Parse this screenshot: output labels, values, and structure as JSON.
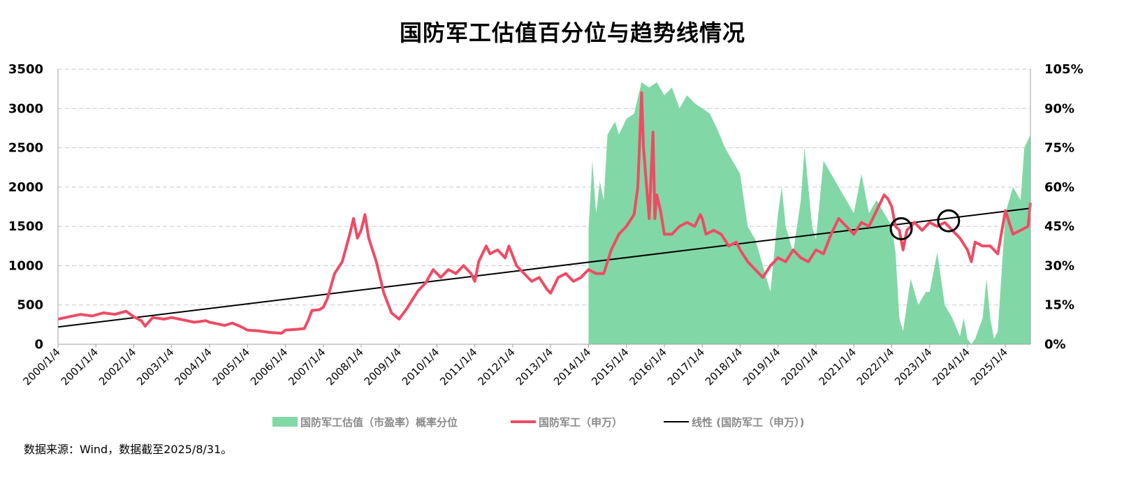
{
  "title": "国防军工估值百分位与趋势线情况",
  "source": "数据来源：Wind，数据截至2025/8/31。",
  "colors": {
    "area": "#82d7a6",
    "line": "#ee4b64",
    "trend": "#000000",
    "grid": "#c8c8c8"
  },
  "legend": [
    {
      "label": "国防军工估值（市盈率）概率分位",
      "type": "area"
    },
    {
      "label": "国防军工（申万）",
      "type": "line"
    },
    {
      "label": "线性 (国防军工（申万）)",
      "type": "trend"
    }
  ],
  "chart_data": {
    "type": "line",
    "title": "国防军工估值百分位与趋势线情况",
    "x_tick_labels": [
      "2000/1/4",
      "2001/1/4",
      "2002/1/4",
      "2003/1/4",
      "2004/1/4",
      "2005/1/4",
      "2006/1/4",
      "2007/1/4",
      "2008/1/4",
      "2009/1/4",
      "2010/1/4",
      "2011/1/4",
      "2012/1/4",
      "2013/1/4",
      "2014/1/4",
      "2015/1/4",
      "2016/1/4",
      "2017/1/4",
      "2018/1/4",
      "2019/1/4",
      "2020/1/4",
      "2021/1/4",
      "2022/1/4",
      "2023/1/4",
      "2024/1/4",
      "2025/1/4"
    ],
    "x_range": [
      "2000/1/4",
      "2025/8/31"
    ],
    "y_left": {
      "ylim": [
        0,
        3500
      ],
      "ticks": [
        "0",
        "500",
        "1000",
        "1500",
        "2000",
        "2500",
        "3000",
        "3500"
      ]
    },
    "y_right": {
      "ylim": [
        0,
        1.05
      ],
      "ticks": [
        "0%",
        "15%",
        "30%",
        "45%",
        "60%",
        "75%",
        "90%",
        "105%"
      ]
    },
    "grid": "horizontal-dashed",
    "legend_position": "bottom",
    "series": [
      {
        "name": "国防军工（申万）",
        "axis": "left",
        "type": "line",
        "points": [
          [
            2000.0,
            320
          ],
          [
            2000.3,
            350
          ],
          [
            2000.6,
            380
          ],
          [
            2000.9,
            360
          ],
          [
            2001.2,
            400
          ],
          [
            2001.5,
            380
          ],
          [
            2001.8,
            420
          ],
          [
            2002.0,
            350
          ],
          [
            2002.2,
            300
          ],
          [
            2002.3,
            230
          ],
          [
            2002.5,
            340
          ],
          [
            2002.8,
            320
          ],
          [
            2003.0,
            340
          ],
          [
            2003.3,
            310
          ],
          [
            2003.6,
            280
          ],
          [
            2003.9,
            300
          ],
          [
            2004.0,
            280
          ],
          [
            2004.2,
            260
          ],
          [
            2004.4,
            240
          ],
          [
            2004.6,
            270
          ],
          [
            2004.8,
            230
          ],
          [
            2005.0,
            180
          ],
          [
            2005.3,
            170
          ],
          [
            2005.6,
            150
          ],
          [
            2005.9,
            140
          ],
          [
            2006.0,
            180
          ],
          [
            2006.3,
            190
          ],
          [
            2006.5,
            200
          ],
          [
            2006.6,
            300
          ],
          [
            2006.7,
            430
          ],
          [
            2006.9,
            440
          ],
          [
            2007.0,
            470
          ],
          [
            2007.1,
            570
          ],
          [
            2007.3,
            900
          ],
          [
            2007.5,
            1050
          ],
          [
            2007.7,
            1400
          ],
          [
            2007.8,
            1600
          ],
          [
            2007.9,
            1350
          ],
          [
            2008.0,
            1450
          ],
          [
            2008.1,
            1650
          ],
          [
            2008.2,
            1350
          ],
          [
            2008.4,
            1050
          ],
          [
            2008.5,
            850
          ],
          [
            2008.6,
            650
          ],
          [
            2008.8,
            400
          ],
          [
            2009.0,
            320
          ],
          [
            2009.2,
            450
          ],
          [
            2009.5,
            680
          ],
          [
            2009.7,
            780
          ],
          [
            2009.9,
            950
          ],
          [
            2010.1,
            850
          ],
          [
            2010.3,
            950
          ],
          [
            2010.5,
            900
          ],
          [
            2010.7,
            1000
          ],
          [
            2010.9,
            900
          ],
          [
            2011.0,
            800
          ],
          [
            2011.1,
            1050
          ],
          [
            2011.3,
            1250
          ],
          [
            2011.4,
            1150
          ],
          [
            2011.6,
            1200
          ],
          [
            2011.8,
            1100
          ],
          [
            2011.9,
            1250
          ],
          [
            2012.1,
            1000
          ],
          [
            2012.3,
            900
          ],
          [
            2012.5,
            800
          ],
          [
            2012.7,
            850
          ],
          [
            2012.9,
            700
          ],
          [
            2013.0,
            650
          ],
          [
            2013.2,
            850
          ],
          [
            2013.4,
            900
          ],
          [
            2013.6,
            800
          ],
          [
            2013.8,
            850
          ],
          [
            2014.0,
            950
          ],
          [
            2014.2,
            900
          ],
          [
            2014.4,
            900
          ],
          [
            2014.6,
            1200
          ],
          [
            2014.8,
            1400
          ],
          [
            2015.0,
            1500
          ],
          [
            2015.2,
            1650
          ],
          [
            2015.3,
            2000
          ],
          [
            2015.4,
            3200
          ],
          [
            2015.45,
            2500
          ],
          [
            2015.5,
            2200
          ],
          [
            2015.6,
            1600
          ],
          [
            2015.7,
            2700
          ],
          [
            2015.75,
            1600
          ],
          [
            2015.8,
            1900
          ],
          [
            2015.9,
            1700
          ],
          [
            2016.0,
            1400
          ],
          [
            2016.2,
            1400
          ],
          [
            2016.4,
            1500
          ],
          [
            2016.6,
            1550
          ],
          [
            2016.8,
            1500
          ],
          [
            2016.95,
            1650
          ],
          [
            2017.0,
            1600
          ],
          [
            2017.1,
            1400
          ],
          [
            2017.3,
            1450
          ],
          [
            2017.5,
            1400
          ],
          [
            2017.7,
            1250
          ],
          [
            2017.9,
            1300
          ],
          [
            2018.0,
            1200
          ],
          [
            2018.2,
            1050
          ],
          [
            2018.4,
            950
          ],
          [
            2018.6,
            850
          ],
          [
            2018.8,
            1000
          ],
          [
            2019.0,
            1100
          ],
          [
            2019.2,
            1050
          ],
          [
            2019.4,
            1200
          ],
          [
            2019.6,
            1100
          ],
          [
            2019.8,
            1050
          ],
          [
            2020.0,
            1200
          ],
          [
            2020.2,
            1150
          ],
          [
            2020.4,
            1400
          ],
          [
            2020.6,
            1600
          ],
          [
            2020.8,
            1500
          ],
          [
            2021.0,
            1400
          ],
          [
            2021.2,
            1550
          ],
          [
            2021.4,
            1500
          ],
          [
            2021.6,
            1700
          ],
          [
            2021.8,
            1900
          ],
          [
            2021.9,
            1850
          ],
          [
            2022.0,
            1750
          ],
          [
            2022.1,
            1500
          ],
          [
            2022.2,
            1450
          ],
          [
            2022.3,
            1200
          ],
          [
            2022.4,
            1450
          ],
          [
            2022.6,
            1550
          ],
          [
            2022.8,
            1450
          ],
          [
            2023.0,
            1550
          ],
          [
            2023.2,
            1500
          ],
          [
            2023.4,
            1550
          ],
          [
            2023.6,
            1450
          ],
          [
            2023.8,
            1350
          ],
          [
            2024.0,
            1200
          ],
          [
            2024.1,
            1050
          ],
          [
            2024.2,
            1300
          ],
          [
            2024.4,
            1250
          ],
          [
            2024.6,
            1250
          ],
          [
            2024.8,
            1150
          ],
          [
            2025.0,
            1700
          ],
          [
            2025.2,
            1400
          ],
          [
            2025.4,
            1450
          ],
          [
            2025.6,
            1500
          ],
          [
            2025.66,
            1800
          ]
        ]
      },
      {
        "name": "国防军工估值（市盈率）概率分位",
        "axis": "right",
        "type": "area",
        "points": [
          [
            2014.0,
            0.44
          ],
          [
            2014.1,
            0.7
          ],
          [
            2014.2,
            0.5
          ],
          [
            2014.3,
            0.62
          ],
          [
            2014.4,
            0.55
          ],
          [
            2014.5,
            0.8
          ],
          [
            2014.7,
            0.85
          ],
          [
            2014.8,
            0.8
          ],
          [
            2015.0,
            0.86
          ],
          [
            2015.2,
            0.88
          ],
          [
            2015.4,
            1.0
          ],
          [
            2015.6,
            0.98
          ],
          [
            2015.8,
            1.0
          ],
          [
            2016.0,
            0.95
          ],
          [
            2016.2,
            0.98
          ],
          [
            2016.4,
            0.9
          ],
          [
            2016.6,
            0.95
          ],
          [
            2016.8,
            0.92
          ],
          [
            2017.0,
            0.9
          ],
          [
            2017.2,
            0.88
          ],
          [
            2017.4,
            0.82
          ],
          [
            2017.6,
            0.75
          ],
          [
            2017.8,
            0.7
          ],
          [
            2018.0,
            0.65
          ],
          [
            2018.2,
            0.45
          ],
          [
            2018.4,
            0.4
          ],
          [
            2018.6,
            0.3
          ],
          [
            2018.8,
            0.2
          ],
          [
            2019.0,
            0.5
          ],
          [
            2019.1,
            0.6
          ],
          [
            2019.2,
            0.45
          ],
          [
            2019.4,
            0.35
          ],
          [
            2019.6,
            0.55
          ],
          [
            2019.7,
            0.75
          ],
          [
            2019.8,
            0.6
          ],
          [
            2019.9,
            0.45
          ],
          [
            2020.0,
            0.4
          ],
          [
            2020.2,
            0.7
          ],
          [
            2020.4,
            0.65
          ],
          [
            2020.6,
            0.6
          ],
          [
            2020.8,
            0.55
          ],
          [
            2021.0,
            0.5
          ],
          [
            2021.2,
            0.65
          ],
          [
            2021.4,
            0.5
          ],
          [
            2021.6,
            0.55
          ],
          [
            2021.8,
            0.5
          ],
          [
            2022.0,
            0.45
          ],
          [
            2022.1,
            0.35
          ],
          [
            2022.2,
            0.1
          ],
          [
            2022.3,
            0.05
          ],
          [
            2022.5,
            0.25
          ],
          [
            2022.7,
            0.15
          ],
          [
            2022.9,
            0.2
          ],
          [
            2023.0,
            0.2
          ],
          [
            2023.2,
            0.35
          ],
          [
            2023.4,
            0.15
          ],
          [
            2023.6,
            0.1
          ],
          [
            2023.8,
            0.03
          ],
          [
            2023.9,
            0.1
          ],
          [
            2024.0,
            0.02
          ],
          [
            2024.1,
            0.0
          ],
          [
            2024.2,
            0.02
          ],
          [
            2024.4,
            0.1
          ],
          [
            2024.5,
            0.25
          ],
          [
            2024.6,
            0.1
          ],
          [
            2024.7,
            0.02
          ],
          [
            2024.8,
            0.05
          ],
          [
            2025.0,
            0.5
          ],
          [
            2025.2,
            0.6
          ],
          [
            2025.4,
            0.55
          ],
          [
            2025.5,
            0.75
          ],
          [
            2025.6,
            0.78
          ],
          [
            2025.66,
            0.8
          ]
        ]
      },
      {
        "name": "线性 (国防军工（申万）)",
        "axis": "left",
        "type": "line",
        "points": [
          [
            2000.0,
            220
          ],
          [
            2025.66,
            1730
          ]
        ]
      }
    ],
    "annotations": [
      {
        "shape": "circle",
        "x": 2022.25,
        "y": 1470
      },
      {
        "shape": "circle",
        "x": 2023.5,
        "y": 1570
      }
    ]
  }
}
